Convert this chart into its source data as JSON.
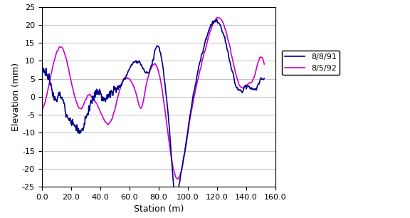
{
  "title": "",
  "xlabel": "Station (m)",
  "ylabel": "Elevation (mm)",
  "xlim": [
    0,
    160
  ],
  "ylim": [
    -25,
    25
  ],
  "xticks": [
    0,
    20,
    40,
    60,
    80,
    100,
    120,
    140,
    160
  ],
  "yticks": [
    -25,
    -20,
    -15,
    -10,
    -5,
    0,
    5,
    10,
    15,
    20,
    25
  ],
  "xtick_labels": [
    "0.0",
    "20.0",
    "40.0",
    "60.0",
    "80.0",
    "100.0",
    "120.0",
    "140.0",
    "160.0"
  ],
  "line1_color": "#00008B",
  "line2_color": "#CC00CC",
  "line1_label": "8/8/91",
  "line2_label": "8/5/92",
  "line_width": 1.2,
  "background_color": "#FFFFFF",
  "legend_fontsize": 8,
  "axis_fontsize": 9,
  "tick_fontsize": 8
}
